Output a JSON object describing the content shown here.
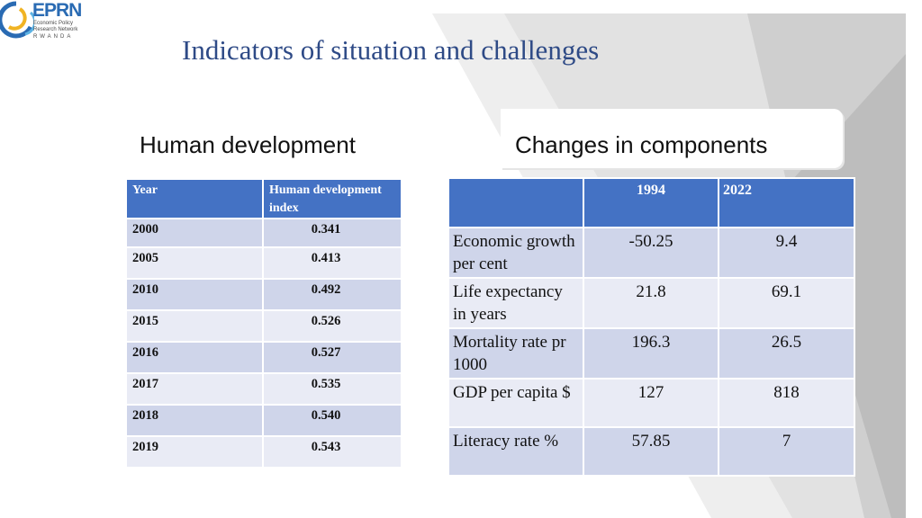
{
  "logo": {
    "name": "EPRN",
    "subtitle_lines": [
      "Economic Policy",
      "Research Network"
    ],
    "country": "RWANDA"
  },
  "title": "Indicators of situation and challenges",
  "left": {
    "heading": "Human development",
    "columns": [
      "Year",
      "Human development index"
    ],
    "rows": [
      {
        "year": "2000",
        "value": "0.341"
      },
      {
        "year": "2005",
        "value": "0.413"
      },
      {
        "year": "2010",
        "value": "0.492"
      },
      {
        "year": "2015",
        "value": "0.526"
      },
      {
        "year": "2016",
        "value": "0.527"
      },
      {
        "year": "2017",
        "value": "0.535"
      },
      {
        "year": "2018",
        "value": "0.540"
      },
      {
        "year": "2019",
        "value": "0.543"
      }
    ]
  },
  "right": {
    "heading": "Changes in components",
    "columns": [
      "",
      "1994",
      "2022"
    ],
    "rows": [
      {
        "label": "Economic growth per cent",
        "v1994": "-50.25",
        "v2022": "9.4"
      },
      {
        "label": "Life expectancy in years",
        "v1994": "21.8",
        "v2022": "69.1"
      },
      {
        "label": "Mortality rate pr 1000",
        "v1994": "196.3",
        "v2022": "26.5"
      },
      {
        "label": "GDP per capita $",
        "v1994": "127",
        "v2022": "818"
      },
      {
        "label": "Literacy rate  %",
        "v1994": "57.85",
        "v2022": "7"
      }
    ]
  },
  "colors": {
    "title": "#2e4a86",
    "table_header": "#4472c4",
    "row_dark": "#cfd5ea",
    "row_light": "#e9ebf5"
  }
}
